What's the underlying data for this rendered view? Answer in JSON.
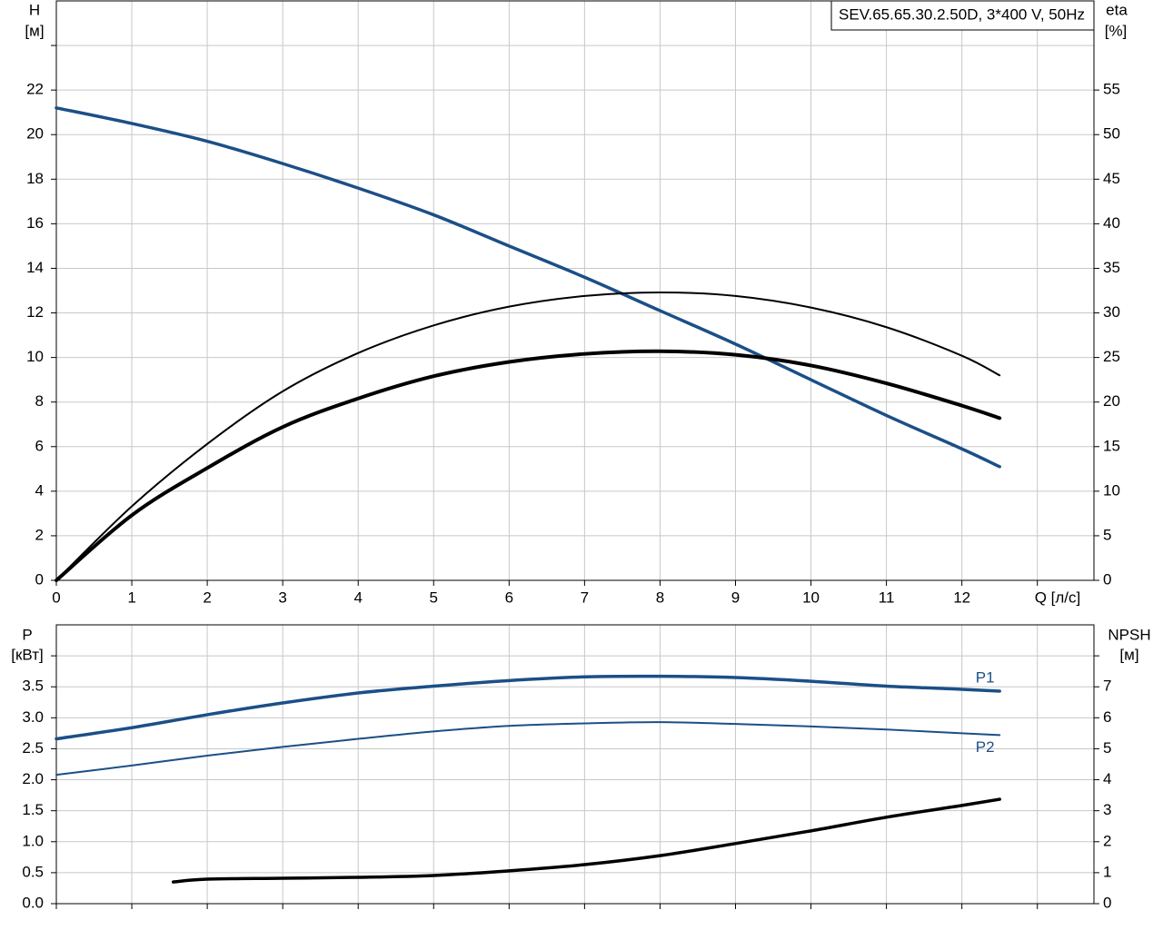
{
  "chart_data": [
    {
      "type": "line",
      "title": "SEV.65.65.30.2.50D, 3*400 V, 50Hz",
      "ylabel": "H",
      "yunit": "[м]",
      "y2label": "eta",
      "y2unit": "[%]",
      "xlabel": "Q [л/с]",
      "xlim": [
        0,
        13.75
      ],
      "xticks": [
        0,
        1,
        2,
        3,
        4,
        5,
        6,
        7,
        8,
        9,
        10,
        11,
        12,
        {
          "value": 13
        }
      ],
      "xtick_labels": true,
      "ylim": [
        0,
        26
      ],
      "yticks": [
        0,
        2,
        4,
        6,
        8,
        10,
        12,
        14,
        16,
        18,
        20,
        22,
        {
          "value": 24
        }
      ],
      "y2lim": [
        0,
        65
      ],
      "y2ticks": [
        0,
        5,
        10,
        15,
        20,
        25,
        30,
        35,
        40,
        45,
        50,
        55
      ],
      "grid": true,
      "series": [
        {
          "color": "#1b4f87",
          "line_width": 3.5,
          "axis": "y",
          "x": [
            0,
            1,
            2,
            3,
            4,
            5,
            6,
            7,
            8,
            9,
            10,
            11,
            12,
            12.5
          ],
          "values": [
            21.2,
            20.5,
            19.7,
            18.7,
            17.6,
            16.4,
            15.0,
            13.6,
            12.1,
            10.6,
            9.0,
            7.4,
            5.9,
            5.1
          ]
        },
        {
          "color": "#000000",
          "line_width": 4,
          "axis": "y2",
          "x": [
            0,
            1,
            2,
            3,
            4,
            5,
            6,
            7,
            8,
            9,
            10,
            11,
            12,
            12.5
          ],
          "values": [
            0,
            7.3,
            12.6,
            17.2,
            20.4,
            22.9,
            24.5,
            25.4,
            25.7,
            25.3,
            24.1,
            22.1,
            19.6,
            18.2
          ]
        },
        {
          "color": "#000000",
          "line_width": 2,
          "axis": "y2",
          "x": [
            0,
            1,
            2,
            3,
            4,
            5,
            6,
            7,
            8,
            9,
            10,
            11,
            12,
            12.5
          ],
          "values": [
            0,
            8.3,
            15.3,
            21.2,
            25.5,
            28.6,
            30.7,
            31.9,
            32.3,
            31.9,
            30.6,
            28.4,
            25.2,
            23.0
          ]
        }
      ]
    },
    {
      "type": "line",
      "ylabel": "P",
      "yunit": "[кВт]",
      "y2label": "NPSH",
      "y2unit": "[м]",
      "xlim": [
        0,
        13.75
      ],
      "xticks": [
        0,
        1,
        2,
        3,
        4,
        5,
        6,
        7,
        8,
        9,
        10,
        11,
        12,
        13
      ],
      "xtick_labels": false,
      "ylim": [
        0,
        4.5
      ],
      "yticks": [
        {
          "value": 0,
          "label": "0.0"
        },
        0.5,
        {
          "value": 1,
          "label": "1.0"
        },
        1.5,
        {
          "value": 2,
          "label": "2.0"
        },
        2.5,
        {
          "value": 3,
          "label": "3.0"
        },
        3.5,
        {
          "value": 4
        }
      ],
      "y2lim": [
        0,
        9
      ],
      "y2ticks": [
        0,
        1,
        2,
        3,
        4,
        5,
        6,
        7,
        {
          "value": 8
        }
      ],
      "grid": true,
      "series": [
        {
          "name": "P1",
          "label_side": "above",
          "color": "#1b4f87",
          "line_width": 3.5,
          "axis": "y",
          "x": [
            0,
            1,
            2,
            3,
            4,
            5,
            6,
            7,
            8,
            9,
            10,
            11,
            12,
            12.5
          ],
          "values": [
            2.66,
            2.84,
            3.05,
            3.24,
            3.4,
            3.51,
            3.6,
            3.66,
            3.67,
            3.65,
            3.59,
            3.51,
            3.46,
            3.43
          ]
        },
        {
          "name": "P2",
          "label_side": "below",
          "color": "#1b4f87",
          "line_width": 2,
          "axis": "y",
          "x": [
            0,
            1,
            2,
            3,
            4,
            5,
            6,
            7,
            8,
            9,
            10,
            11,
            12,
            12.5
          ],
          "values": [
            2.08,
            2.23,
            2.39,
            2.53,
            2.66,
            2.78,
            2.87,
            2.91,
            2.93,
            2.9,
            2.86,
            2.81,
            2.75,
            2.72
          ]
        },
        {
          "color": "#000000",
          "line_width": 3.5,
          "axis": "y2",
          "x": [
            1.55,
            2,
            3,
            4,
            5,
            6,
            7,
            8,
            9,
            10,
            11,
            12,
            12.5
          ],
          "values": [
            0.7,
            0.79,
            0.82,
            0.85,
            0.91,
            1.06,
            1.26,
            1.55,
            1.94,
            2.35,
            2.79,
            3.17,
            3.37
          ]
        }
      ]
    }
  ]
}
